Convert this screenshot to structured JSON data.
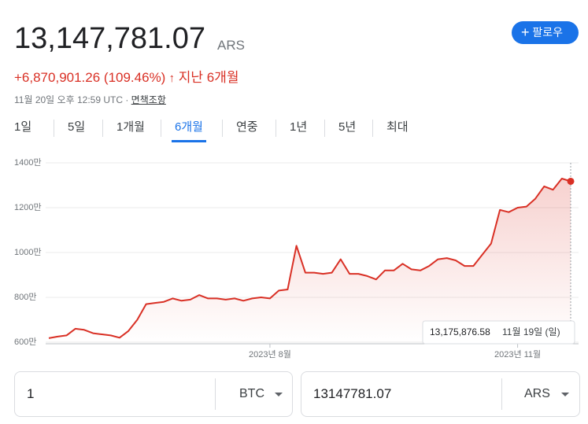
{
  "header": {
    "price": "13,147,781.07",
    "currency": "ARS",
    "change": "+6,870,901.26 (109.46%)",
    "period": "지난 6개월",
    "timestamp": "11월 20일 오후 12:59 UTC",
    "disclaimer": "면책조항",
    "follow": "팔로우"
  },
  "tabs": [
    "1일",
    "5일",
    "1개월",
    "6개월",
    "연중",
    "1년",
    "5년",
    "최대"
  ],
  "chart_data": {
    "type": "line",
    "categories": [
      null,
      null,
      null,
      null,
      null,
      null,
      null,
      null,
      null,
      null,
      null,
      null,
      null,
      null,
      null,
      null,
      null,
      null,
      null,
      null,
      null,
      null,
      null,
      null,
      null,
      "2023년 8월",
      null,
      null,
      null,
      null,
      null,
      null,
      null,
      null,
      null,
      null,
      null,
      null,
      null,
      null,
      null,
      null,
      null,
      null,
      null,
      null,
      null,
      null,
      null,
      null,
      null,
      null,
      null,
      "2023년 11월",
      null,
      null,
      null,
      null,
      null,
      null
    ],
    "series": [
      {
        "name": "ARS",
        "color": "#d93025",
        "values": [
          6180000,
          6250000,
          6300000,
          6600000,
          6550000,
          6400000,
          6350000,
          6300000,
          6200000,
          6500000,
          7000000,
          7700000,
          7750000,
          7800000,
          7950000,
          7850000,
          7900000,
          8100000,
          7950000,
          7950000,
          7900000,
          7950000,
          7850000,
          7950000,
          8000000,
          7950000,
          8300000,
          8350000,
          10300000,
          9100000,
          9100000,
          9050000,
          9100000,
          9700000,
          9050000,
          9050000,
          8950000,
          8800000,
          9200000,
          9200000,
          9500000,
          9250000,
          9200000,
          9400000,
          9700000,
          9750000,
          9650000,
          9400000,
          9400000,
          9900000,
          10400000,
          11900000,
          11800000,
          12000000,
          12050000,
          12400000,
          12950000,
          12800000,
          13300000,
          13175876.58
        ]
      }
    ],
    "ylim": [
      6000000,
      14000000
    ],
    "yticks": [
      {
        "value": 6000000,
        "label": "600만"
      },
      {
        "value": 8000000,
        "label": "800만"
      },
      {
        "value": 10000000,
        "label": "1000만"
      },
      {
        "value": 12000000,
        "label": "1200만"
      },
      {
        "value": 14000000,
        "label": "1400만"
      }
    ],
    "grid": true,
    "tooltip": {
      "value": "13,175,876.58",
      "date": "11월 19일 (일)"
    }
  },
  "converter": {
    "from_amount": "1",
    "from_currency": "BTC",
    "to_amount": "13147781.07",
    "to_currency": "ARS"
  }
}
